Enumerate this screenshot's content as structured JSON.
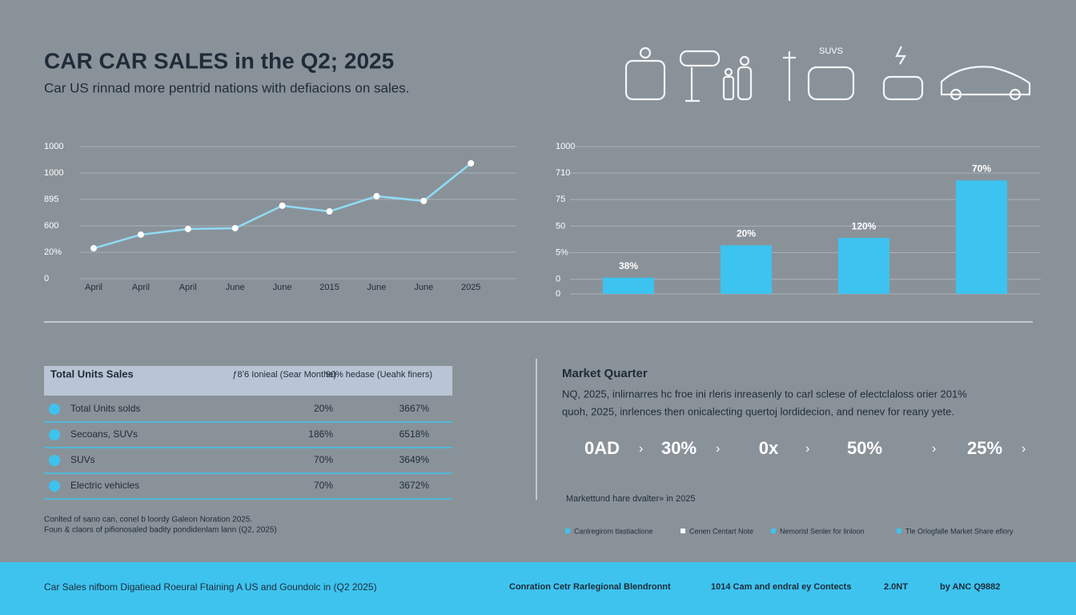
{
  "header": {
    "title": "CAR CAR SALES in the Q2; 2025",
    "subtitle": "Car US rinnad more pentrid nations with defiacions on sales.",
    "icon_label": "SUVS"
  },
  "chart_data": [
    {
      "type": "line",
      "categories": [
        "April",
        "April",
        "April",
        "June",
        "June",
        "2015",
        "June",
        "June",
        "2025"
      ],
      "values": [
        230,
        333,
        376,
        382,
        552,
        509,
        624,
        588,
        873
      ],
      "color": "#8fdcf6",
      "ylim": [
        0,
        1000
      ],
      "yticks": [
        0,
        {
          "value": 200,
          "label": "20%"
        },
        {
          "value": 400,
          "label": "600"
        },
        {
          "value": 600,
          "label": "895"
        },
        {
          "value": 800,
          "label": "1000"
        },
        {
          "value": 1000,
          "label": "1000"
        }
      ],
      "grid": true
    },
    {
      "type": "bar",
      "categories": [
        null,
        null,
        null,
        null
      ],
      "values": [
        11,
        33,
        38,
        77
      ],
      "color": "#3cc3f0",
      "annotations": [
        "38%",
        "20%",
        "120%",
        "70%"
      ],
      "ylim": [
        0,
        100
      ],
      "yticks": [
        0,
        {
          "value": 10,
          "label": "0"
        },
        {
          "value": 28,
          "label": "5%"
        },
        {
          "value": 46,
          "label": "50"
        },
        {
          "value": 64,
          "label": "75"
        },
        {
          "value": 82,
          "label": "710"
        },
        {
          "value": 100,
          "label": "1000"
        }
      ],
      "grid": true
    }
  ],
  "table": {
    "header": [
      "Total Units Sales",
      "ƒ8ʼ6 Ionieal (Sear Monthe)",
      "90% hedase (Ueahk finers)"
    ],
    "rows": [
      [
        "Total Units solds",
        "20%",
        "3667%"
      ],
      [
        "Secoans, SUVs",
        "186%",
        "6518%"
      ],
      [
        "SUVs",
        "70%",
        "3649%"
      ],
      [
        "Electric vehicles",
        "70%",
        "3672%"
      ]
    ],
    "notes": [
      "Conlted of sano can, conel b loordy Galeon Noration 2025.",
      "Foun & claors of pifionosaled badity pondidenlam lann (Q2, 2025)"
    ]
  },
  "market": {
    "title": "Market Quarter",
    "text": [
      "NQ, 2025, inlirnarres hc froe ini rleris inreasenly to carl sclese of electclaloss orier 201%",
      "quoh, 2025, inrlences then onicalecting quertoj lordidecion, and nenev for reany yete."
    ],
    "stats": [
      "0AD",
      "30%",
      "0x",
      "50%",
      "25%"
    ],
    "caption": "Markettund hare dvalter» in 2025",
    "legend": [
      "Canlregirom tlastiaclione",
      "Cenen Centart Note",
      "Nemorisl Senler for linloon",
      "Tle Orlogfalle Market Share efiory"
    ]
  },
  "footer": {
    "left": "Car Sales nifbom Digatiead Roeural Ftaining A US and Goundolc in (Q2 2025)",
    "right": [
      "Conration Cetr Rarlegional Blendronnt",
      "1014 Cam and endral ey Contects",
      "2.0NT",
      "by ANC Q9882"
    ]
  }
}
